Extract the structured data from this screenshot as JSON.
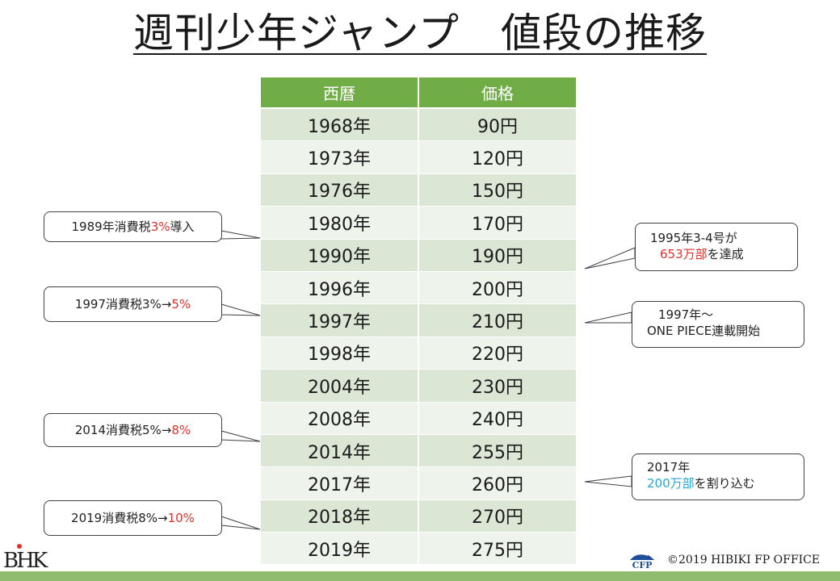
{
  "title": "週刊少年ジャンプ　値段の推移",
  "table": {
    "headers": [
      "西暦",
      "価格"
    ],
    "rows": [
      {
        "year": "1968年",
        "price": "90円"
      },
      {
        "year": "1973年",
        "price": "120円"
      },
      {
        "year": "1976年",
        "price": "150円"
      },
      {
        "year": "1980年",
        "price": "170円"
      },
      {
        "year": "1990年",
        "price": "190円"
      },
      {
        "year": "1996年",
        "price": "200円"
      },
      {
        "year": "1997年",
        "price": "210円"
      },
      {
        "year": "1998年",
        "price": "220円"
      },
      {
        "year": "2004年",
        "price": "230円"
      },
      {
        "year": "2008年",
        "price": "240円"
      },
      {
        "year": "2014年",
        "price": "255円"
      },
      {
        "year": "2017年",
        "price": "260円"
      },
      {
        "year": "2018年",
        "price": "270円"
      },
      {
        "year": "2019年",
        "price": "275円"
      }
    ]
  },
  "callouts": {
    "tax1989": {
      "pre": "1989年消費税",
      "hi": "3%",
      "post": "導入"
    },
    "tax1997": {
      "pre": "1997消費税3%→",
      "hi": "5%"
    },
    "tax2014": {
      "pre": "2014消費税5%→",
      "hi": "8%"
    },
    "tax2019": {
      "pre": "2019消費税8%→",
      "hi": "10%"
    },
    "sales1995": {
      "line1": "1995年3-4号が",
      "hi": "653万部",
      "post": "を達成"
    },
    "onepiece1997": {
      "line1": "1997年～",
      "line2": "ONE PIECE連載開始"
    },
    "sales2017": {
      "line1": "2017年",
      "hi": "200万部",
      "post": "を割り込む"
    }
  },
  "footer": {
    "logo_text": "BHK",
    "cfp_text": "CFP",
    "copyright": "©2019 HIBIKI FP OFFICE"
  },
  "colors": {
    "header_green": "#70ad47",
    "row_dark": "#dbe6d5",
    "row_light": "#eef3ec",
    "highlight_red": "#e0302a",
    "highlight_blue": "#2aa6d8",
    "bottom_bar": "#8fbc6f"
  }
}
